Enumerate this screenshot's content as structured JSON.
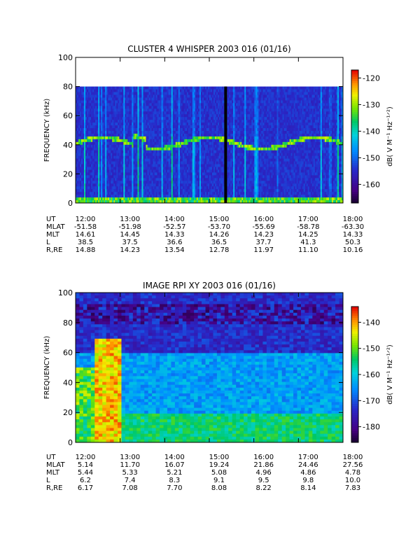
{
  "chart_data": [
    {
      "type": "heatmap",
      "title": "CLUSTER 4 WHISPER 2003 016 (01/16)",
      "ylabel": "FREQUENCY (kHz)",
      "ylim": [
        0,
        100
      ],
      "yticks": [
        "0",
        "20",
        "40",
        "60",
        "80",
        "100"
      ],
      "x": [
        "12:00",
        "13:00",
        "14:00",
        "15:00",
        "16:00",
        "17:00",
        "18:00"
      ],
      "data_ceiling_khz": 80,
      "data_gap_ut": "15:22",
      "colorbar": {
        "label": "dB( V M⁻¹ Hz⁻¹ᐟ²)",
        "range": [
          -167,
          -117
        ],
        "ticks": [
          "-120",
          "-130",
          "-140",
          "-150",
          "-160"
        ]
      },
      "ephemeris": [
        {
          "label": "UT",
          "values": [
            "12:00",
            "13:00",
            "14:00",
            "15:00",
            "16:00",
            "17:00",
            "18:00"
          ]
        },
        {
          "label": "MLAT",
          "values": [
            "-51.58",
            "-51.98",
            "-52.57",
            "-53.70",
            "-55.69",
            "-58.78",
            "-63.30"
          ]
        },
        {
          "label": "MLT",
          "values": [
            "14.61",
            "14.45",
            "14.33",
            "14.26",
            "14.23",
            "14.25",
            "14.33"
          ]
        },
        {
          "label": "L",
          "values": [
            "38.5",
            "37.5",
            "36.6",
            "36.5",
            "37.7",
            "41.3",
            "50.3"
          ]
        },
        {
          "label": "R,RE",
          "values": [
            "14.88",
            "14.23",
            "13.54",
            "12.78",
            "11.97",
            "11.10",
            "10.16"
          ]
        }
      ]
    },
    {
      "type": "heatmap",
      "title": "IMAGE RPI XY 2003 016 (01/16)",
      "ylabel": "FREQUENCY (kHz)",
      "ylim": [
        0,
        100
      ],
      "yticks": [
        "0",
        "20",
        "40",
        "60",
        "80",
        "100"
      ],
      "x": [
        "12:00",
        "13:00",
        "14:00",
        "15:00",
        "16:00",
        "17:00",
        "18:00"
      ],
      "colorbar": {
        "label": "dB( V M⁻¹ Hz⁻¹ᐟ²)",
        "range": [
          -186,
          -134
        ],
        "ticks": [
          "-140",
          "-150",
          "-160",
          "-170",
          "-180"
        ]
      },
      "ephemeris": [
        {
          "label": "UT",
          "values": [
            "12:00",
            "13:00",
            "14:00",
            "15:00",
            "16:00",
            "17:00",
            "18:00"
          ]
        },
        {
          "label": "MLAT",
          "values": [
            "5.14",
            "11.70",
            "16.07",
            "19.24",
            "21.86",
            "24.46",
            "27.56"
          ]
        },
        {
          "label": "MLT",
          "values": [
            "5.44",
            "5.33",
            "5.21",
            "5.08",
            "4.96",
            "4.86",
            "4.78"
          ]
        },
        {
          "label": "L",
          "values": [
            "6.2",
            "7.4",
            "8.3",
            "9.1",
            "9.5",
            "9.8",
            "10.0"
          ]
        },
        {
          "label": "R,RE",
          "values": [
            "6.17",
            "7.08",
            "7.70",
            "8.08",
            "8.22",
            "8.14",
            "7.83"
          ]
        }
      ]
    }
  ]
}
